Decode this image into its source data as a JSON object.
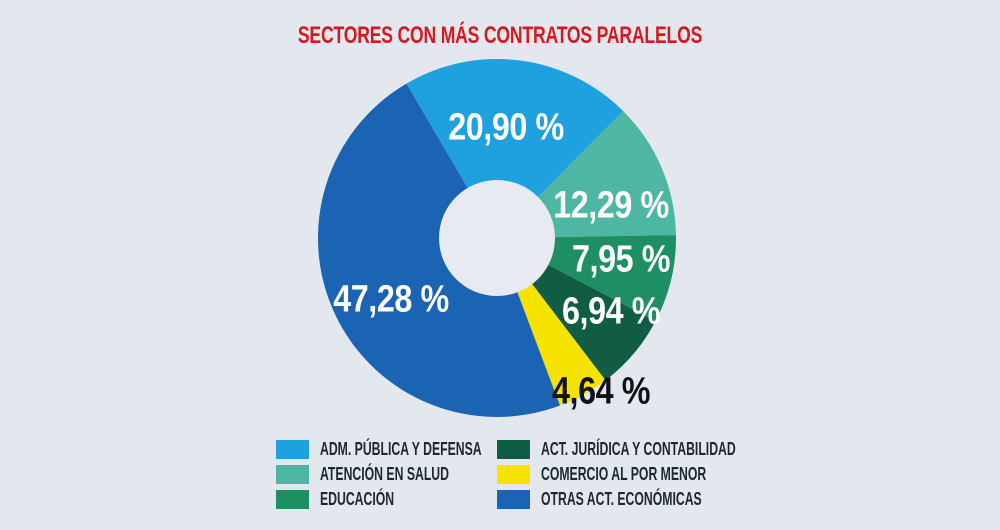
{
  "page": {
    "background": "#E3E8EF",
    "hole_color": "#E7EBF1",
    "title_color": "#D7181F",
    "legend_text_color": "#1D2733",
    "value_label_color_light": "#FFFFFF",
    "value_label_color_dark": "#101318"
  },
  "chart_data": {
    "type": "pie",
    "donut": true,
    "title": "SECTORES CON MÁS CONTRATOS PARALELOS",
    "start_angle_deg": -30.4,
    "direction": "clockwise",
    "legend_position": "bottom",
    "legend_columns": 2,
    "total": 100,
    "slices": [
      {
        "label": "ADM. PÚBLICA Y DEFENSA",
        "value": 20.9,
        "display": "20,90 %",
        "color": "#1FA0DF",
        "label_color": "#FFFFFF"
      },
      {
        "label": "ATENCIÓN EN SALUD",
        "value": 12.29,
        "display": "12,29 %",
        "color": "#4DB7A4",
        "label_color": "#FFFFFF"
      },
      {
        "label": "EDUCACIÓN",
        "value": 7.95,
        "display": "7,95 %",
        "color": "#1D8F63",
        "label_color": "#FFFFFF"
      },
      {
        "label": "ACT. JURÍDICA Y CONTABILIDAD",
        "value": 6.94,
        "display": "6,94 %",
        "color": "#115C44",
        "label_color": "#FFFFFF"
      },
      {
        "label": "COMERCIO AL POR MENOR",
        "value": 4.64,
        "display": "4,64 %",
        "color": "#F6E300",
        "label_color": "#101318"
      },
      {
        "label": "OTRAS ACT. ECONÓMICAS",
        "value": 47.28,
        "display": "47,28 %",
        "color": "#1B64B4",
        "label_color": "#FFFFFF"
      }
    ]
  }
}
